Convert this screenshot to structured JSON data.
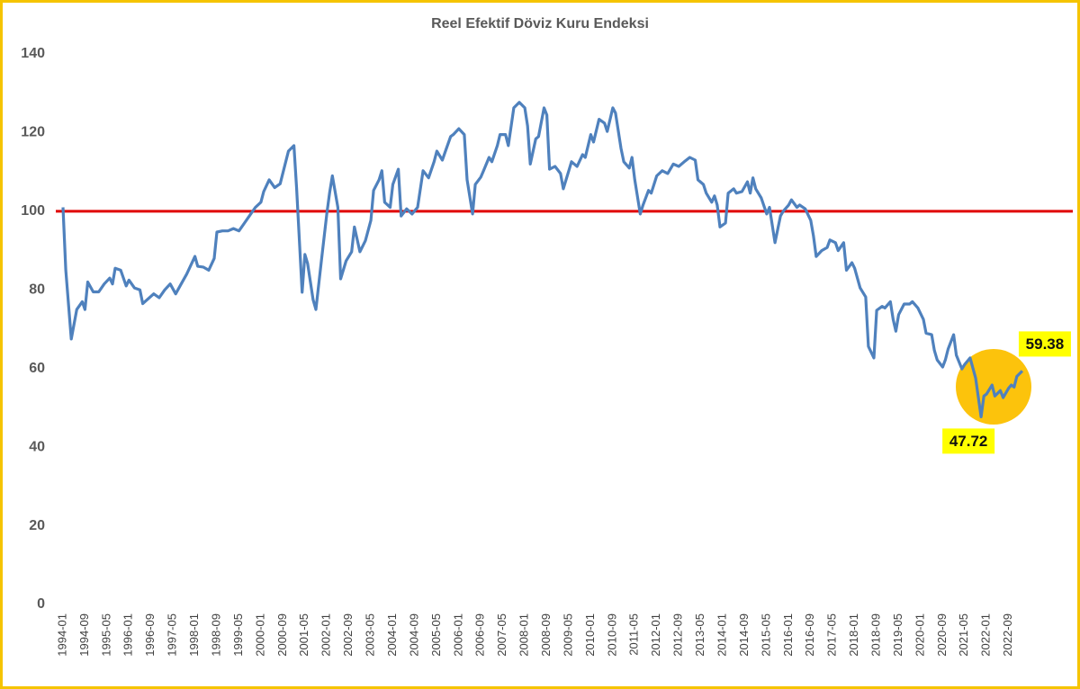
{
  "chart_data": {
    "type": "line",
    "title": "Reel Efektif Döviz Kuru Endeksi",
    "color": "#4f81bd",
    "reference_line": {
      "value": 100,
      "color": "#e00000"
    },
    "xlim": [
      "1994-01",
      "2023-03"
    ],
    "xticks": [
      "1994-01",
      "1994-09",
      "1995-05",
      "1996-01",
      "1996-09",
      "1997-05",
      "1998-01",
      "1998-09",
      "1999-05",
      "2000-01",
      "2000-09",
      "2001-05",
      "2002-01",
      "2002-09",
      "2003-05",
      "2004-01",
      "2004-09",
      "2005-05",
      "2006-01",
      "2006-09",
      "2007-05",
      "2008-01",
      "2008-09",
      "2009-05",
      "2010-01",
      "2010-09",
      "2011-05",
      "2012-01",
      "2012-09",
      "2013-05",
      "2014-01",
      "2014-09",
      "2015-05",
      "2016-01",
      "2016-09",
      "2017-05",
      "2018-01",
      "2018-09",
      "2019-05",
      "2020-01",
      "2020-09",
      "2021-05",
      "2022-01",
      "2022-09"
    ],
    "ylim": [
      0,
      140
    ],
    "yticks": [
      0,
      20,
      40,
      60,
      80,
      100,
      120,
      140
    ],
    "grid": false,
    "x": [
      "1994-01",
      "1994-02",
      "1994-04",
      "1994-06",
      "1994-08",
      "1994-09",
      "1994-10",
      "1994-12",
      "1995-02",
      "1995-04",
      "1995-06",
      "1995-07",
      "1995-08",
      "1995-10",
      "1995-12",
      "1996-01",
      "1996-03",
      "1996-05",
      "1996-06",
      "1996-10",
      "1996-12",
      "1997-02",
      "1997-04",
      "1997-06",
      "1997-08",
      "1997-10",
      "1997-11",
      "1998-01",
      "1998-02",
      "1998-04",
      "1998-06",
      "1998-08",
      "1998-09",
      "1998-11",
      "1999-01",
      "1999-03",
      "1999-05",
      "1999-07",
      "1999-09",
      "1999-11",
      "2000-01",
      "2000-02",
      "2000-04",
      "2000-06",
      "2000-08",
      "2000-10",
      "2000-11",
      "2001-01",
      "2001-02",
      "2001-04",
      "2001-05",
      "2001-06",
      "2001-08",
      "2001-09",
      "2001-11",
      "2002-01",
      "2002-02",
      "2002-03",
      "2002-05",
      "2002-06",
      "2002-08",
      "2002-10",
      "2002-11",
      "2003-01",
      "2003-03",
      "2003-05",
      "2003-06",
      "2003-08",
      "2003-09",
      "2003-10",
      "2003-12",
      "2004-01",
      "2004-03",
      "2004-04",
      "2004-06",
      "2004-08",
      "2004-10",
      "2004-12",
      "2005-02",
      "2005-04",
      "2005-05",
      "2005-07",
      "2005-08",
      "2005-10",
      "2005-11",
      "2006-01",
      "2006-03",
      "2006-04",
      "2006-06",
      "2006-07",
      "2006-09",
      "2006-10",
      "2006-12",
      "2007-01",
      "2007-03",
      "2007-04",
      "2007-06",
      "2007-07",
      "2007-09",
      "2007-11",
      "2008-01",
      "2008-02",
      "2008-03",
      "2008-05",
      "2008-06",
      "2008-08",
      "2008-09",
      "2008-10",
      "2008-12",
      "2009-02",
      "2009-03",
      "2009-05",
      "2009-06",
      "2009-08",
      "2009-10",
      "2009-11",
      "2010-01",
      "2010-02",
      "2010-04",
      "2010-06",
      "2010-07",
      "2010-09",
      "2010-10",
      "2010-12",
      "2011-01",
      "2011-03",
      "2011-04",
      "2011-05",
      "2011-07",
      "2011-08",
      "2011-10",
      "2011-11",
      "2012-01",
      "2012-03",
      "2012-05",
      "2012-07",
      "2012-09",
      "2012-11",
      "2013-01",
      "2013-03",
      "2013-04",
      "2013-06",
      "2013-07",
      "2013-09",
      "2013-10",
      "2013-11",
      "2013-12",
      "2014-02",
      "2014-03",
      "2014-05",
      "2014-06",
      "2014-08",
      "2014-10",
      "2014-11",
      "2014-12",
      "2015-01",
      "2015-03",
      "2015-05",
      "2015-06",
      "2015-08",
      "2015-10",
      "2015-11",
      "2016-01",
      "2016-02",
      "2016-04",
      "2016-05",
      "2016-07",
      "2016-09",
      "2016-10",
      "2016-11",
      "2017-01",
      "2017-03",
      "2017-04",
      "2017-06",
      "2017-07",
      "2017-09",
      "2017-10",
      "2017-12",
      "2018-01",
      "2018-03",
      "2018-05",
      "2018-06",
      "2018-08",
      "2018-09",
      "2018-11",
      "2018-12",
      "2019-02",
      "2019-03",
      "2019-04",
      "2019-05",
      "2019-07",
      "2019-09",
      "2019-10",
      "2019-12",
      "2020-02",
      "2020-03",
      "2020-05",
      "2020-06",
      "2020-07",
      "2020-09",
      "2020-10",
      "2020-11",
      "2021-01",
      "2021-02",
      "2021-04",
      "2021-05",
      "2021-07",
      "2021-09",
      "2021-11",
      "2021-12",
      "2022-01",
      "2022-03",
      "2022-04",
      "2022-06",
      "2022-07",
      "2022-09",
      "2022-10",
      "2022-11",
      "2022-12",
      "2023-02"
    ],
    "values": [
      101,
      85,
      67.5,
      75,
      77,
      75,
      82,
      79.5,
      79.5,
      81.5,
      83,
      81.5,
      85.5,
      85,
      81,
      82.5,
      80.5,
      80,
      76.5,
      79,
      78,
      80,
      81.5,
      79,
      81.5,
      84,
      85.5,
      88.5,
      86,
      85.8,
      85,
      88,
      94.7,
      95,
      95,
      95.6,
      95,
      97,
      99,
      101,
      102.3,
      105,
      108,
      106,
      107,
      112.5,
      115.3,
      116.7,
      105.7,
      79.4,
      89,
      86.7,
      77.5,
      75,
      87.4,
      99.5,
      104.8,
      109,
      101,
      82.8,
      87.4,
      89.7,
      96,
      89.7,
      92.5,
      97.7,
      105.3,
      108,
      110.3,
      102.3,
      101,
      106.8,
      110.7,
      98.8,
      100.6,
      99.3,
      101,
      110.3,
      108.5,
      112.6,
      115.3,
      113,
      115,
      119,
      119.5,
      121,
      119.5,
      108,
      99.3,
      106.8,
      108.7,
      110.3,
      113.7,
      112.6,
      116.7,
      119.5,
      119.5,
      116.7,
      126.3,
      127.7,
      126.3,
      121.7,
      112,
      118.4,
      119,
      126.3,
      124.5,
      110.7,
      111.4,
      109.6,
      105.7,
      110.3,
      112.6,
      111.4,
      114.4,
      113.7,
      119.5,
      117.6,
      123.4,
      122.4,
      120.3,
      126.3,
      125,
      116,
      112.6,
      111,
      113.7,
      108,
      99.3,
      101.6,
      105.3,
      104.6,
      109,
      110.3,
      109.6,
      112,
      111.4,
      112.6,
      113.7,
      113,
      108,
      106.8,
      104.6,
      102.3,
      103.9,
      101.6,
      96,
      97,
      104.6,
      105.7,
      104.6,
      105,
      107.5,
      104.6,
      108.5,
      105.7,
      103.4,
      99.3,
      101,
      92,
      98.8,
      100,
      101.6,
      102.9,
      101,
      101.6,
      100.6,
      97.7,
      93.8,
      88.5,
      90,
      90.8,
      92.7,
      92,
      90,
      92,
      85,
      86.9,
      85.5,
      80.5,
      78.2,
      65.6,
      62.7,
      74.8,
      75.8,
      75.4,
      77,
      72.5,
      69.5,
      73.7,
      76.4,
      76.4,
      77,
      75.4,
      72.5,
      69,
      68.6,
      64.6,
      62.2,
      60.4,
      62.2,
      65,
      68.6,
      63.4,
      59.9,
      61,
      62.7,
      57.6,
      47.72,
      53,
      53.5,
      55.8,
      53,
      54.4,
      52.6,
      55,
      55.8,
      55.3,
      58,
      59.38
    ]
  }
}
